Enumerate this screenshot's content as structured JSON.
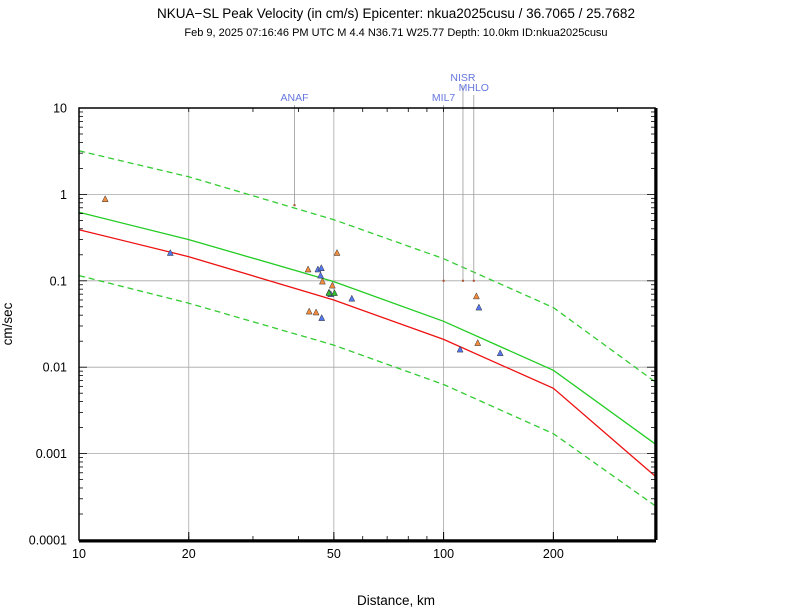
{
  "chart_data": {
    "type": "scatter",
    "title": "NKUA−SL Peak Velocity (in cm/s) Epicenter: nkua2025cusu / 36.7065 / 25.7682",
    "subtitle": "Feb  9, 2025 07:16:46 PM UTC   M 4.4   N36.71 W25.77   Depth: 10.0km   ID:nkua2025cusu",
    "xlabel": "Distance, km",
    "ylabel": "cm/sec",
    "xscale": "log",
    "yscale": "log",
    "xlim": [
      10,
      380
    ],
    "ylim": [
      0.0001,
      10
    ],
    "grid": true,
    "x_ticks": [
      {
        "value": 10,
        "label": "10"
      },
      {
        "value": 20,
        "label": "20"
      },
      {
        "value": 50,
        "label": "50"
      },
      {
        "value": 100,
        "label": "100"
      },
      {
        "value": 200,
        "label": "200"
      }
    ],
    "y_ticks": [
      {
        "value": 10,
        "label": "10"
      },
      {
        "value": 1,
        "label": "1"
      },
      {
        "value": 0.1,
        "label": "0.1"
      },
      {
        "value": 0.01,
        "label": "0.01"
      },
      {
        "value": 0.001,
        "label": "0.001"
      },
      {
        "value": 0.0001,
        "label": "0.0001"
      }
    ],
    "curves": [
      {
        "name": "upper-bound",
        "color": "#33cc33",
        "dashed": true,
        "x": [
          10,
          20,
          50,
          100,
          200,
          380
        ],
        "y": [
          3.2,
          1.6,
          0.51,
          0.18,
          0.049,
          0.0068
        ]
      },
      {
        "name": "median",
        "color": "#22cc22",
        "dashed": false,
        "x": [
          10,
          20,
          50,
          100,
          200,
          380
        ],
        "y": [
          0.62,
          0.3,
          0.098,
          0.034,
          0.0092,
          0.0013
        ]
      },
      {
        "name": "lower-bound",
        "color": "#33cc33",
        "dashed": true,
        "x": [
          10,
          20,
          50,
          100,
          200,
          380
        ],
        "y": [
          0.115,
          0.055,
          0.018,
          0.0063,
          0.0017,
          0.00025
        ]
      },
      {
        "name": "reference",
        "color": "#ee1111",
        "dashed": false,
        "x": [
          10,
          20,
          50,
          100,
          200,
          380
        ],
        "y": [
          0.39,
          0.19,
          0.06,
          0.021,
          0.0057,
          0.00055
        ]
      }
    ],
    "series": [
      {
        "name": "orange-stations",
        "color": "#f28c3c",
        "marker": "triangle",
        "x": [
          11.8,
          42.5,
          46.5,
          48.5,
          49.5,
          51,
          42.8,
          44.7,
          123,
          124
        ],
        "y": [
          0.88,
          0.135,
          0.098,
          0.073,
          0.088,
          0.21,
          0.044,
          0.043,
          0.066,
          0.019
        ]
      },
      {
        "name": "blue-stations",
        "color": "#5577ee",
        "marker": "triangle",
        "x": [
          17.8,
          45.2,
          46.2,
          46,
          49,
          56,
          46.3,
          125,
          111,
          143
        ],
        "y": [
          0.21,
          0.135,
          0.14,
          0.115,
          0.07,
          0.062,
          0.037,
          0.049,
          0.016,
          0.0145
        ]
      },
      {
        "name": "green-stations",
        "color": "#33bb33",
        "marker": "triangle",
        "x": [
          48.5,
          50.2
        ],
        "y": [
          0.072,
          0.072
        ]
      }
    ],
    "annotations": [
      {
        "label": "ANAF",
        "x": 39,
        "y": 0.75
      },
      {
        "label": "NISR",
        "x": 113,
        "y": 0.1
      },
      {
        "label": "MHLO",
        "x": 121,
        "y": 0.1
      },
      {
        "label": "MIL7",
        "x": 100,
        "y": 0.1
      }
    ]
  }
}
